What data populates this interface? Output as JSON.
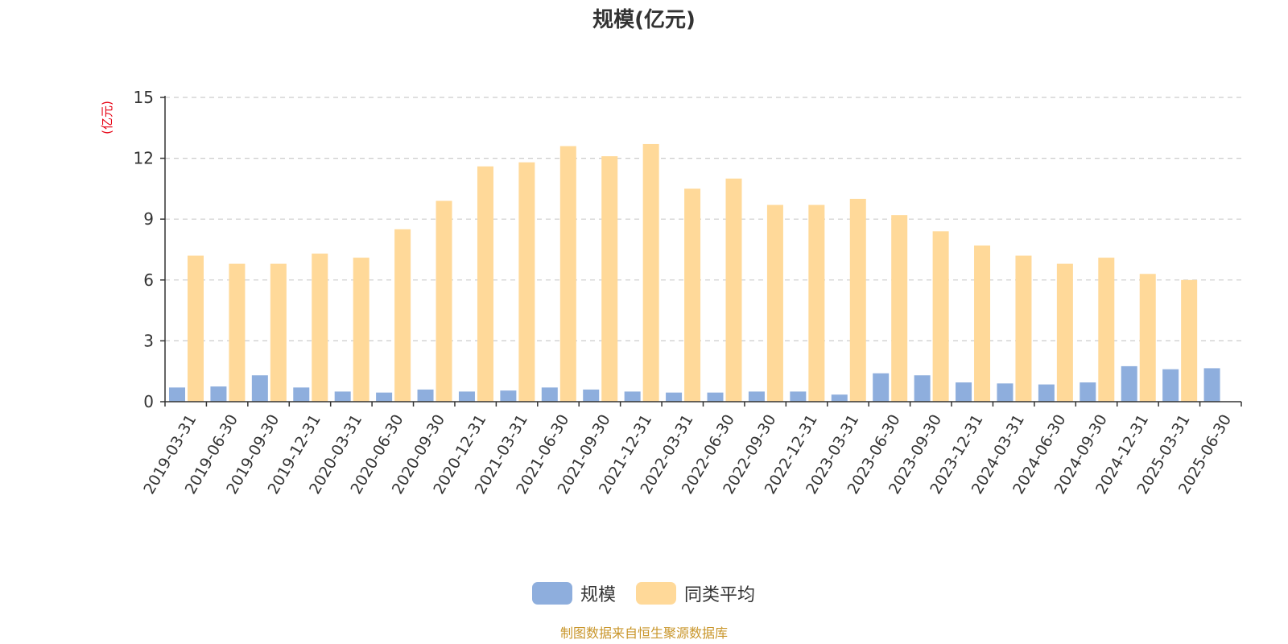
{
  "chart_data": {
    "type": "bar",
    "title": "规模(亿元)",
    "ylabel": "(亿元)",
    "ylim": [
      0,
      15
    ],
    "yticks": [
      "0",
      "3",
      "6",
      "9",
      "12",
      "15"
    ],
    "grid": true,
    "legend_position": "bottom",
    "categories": [
      "2019-03-31",
      "2019-06-30",
      "2019-09-30",
      "2019-12-31",
      "2020-03-31",
      "2020-06-30",
      "2020-09-30",
      "2020-12-31",
      "2021-03-31",
      "2021-06-30",
      "2021-09-30",
      "2021-12-31",
      "2022-03-31",
      "2022-06-30",
      "2022-09-30",
      "2022-12-31",
      "2023-03-31",
      "2023-06-30",
      "2023-09-30",
      "2023-12-31",
      "2024-03-31",
      "2024-06-30",
      "2024-09-30",
      "2024-12-31",
      "2025-03-31",
      "2025-06-30"
    ],
    "series": [
      {
        "name": "规模",
        "color": "#8eaedd",
        "values": [
          0.7,
          0.75,
          1.3,
          0.7,
          0.5,
          0.45,
          0.6,
          0.5,
          0.55,
          0.7,
          0.6,
          0.5,
          0.45,
          0.45,
          0.5,
          0.5,
          0.35,
          1.4,
          1.3,
          0.95,
          0.9,
          0.85,
          0.95,
          1.75,
          1.6,
          1.65
        ]
      },
      {
        "name": "同类平均",
        "color": "#ffd999",
        "values": [
          7.2,
          6.8,
          6.8,
          7.3,
          7.1,
          8.5,
          9.9,
          11.6,
          11.8,
          12.6,
          12.1,
          12.7,
          10.5,
          11.0,
          9.7,
          9.7,
          10.0,
          9.2,
          8.4,
          7.7,
          7.2,
          6.8,
          7.1,
          6.3,
          6.0,
          null
        ]
      }
    ]
  },
  "source": "制图数据来自恒生聚源数据库"
}
